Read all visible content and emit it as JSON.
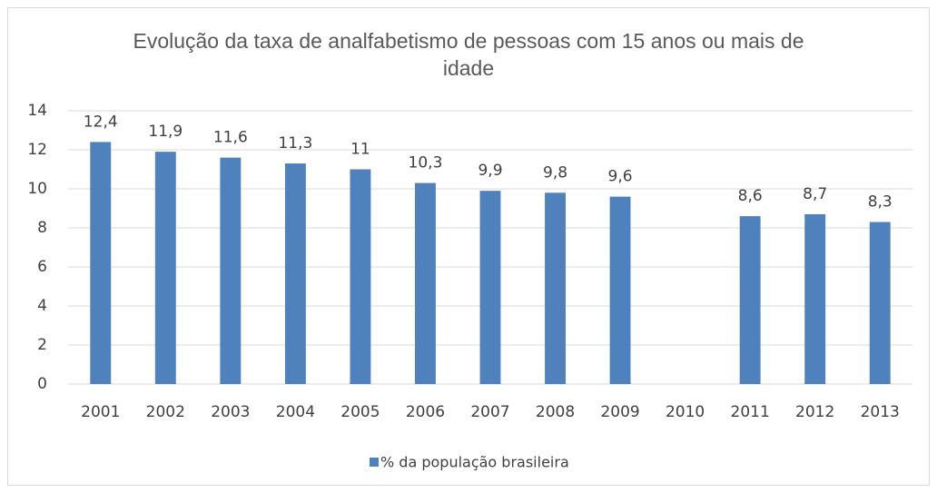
{
  "chart_data": {
    "type": "bar",
    "title": "Evolução da taxa de analfabetismo de pessoas com 15 anos ou mais de idade",
    "categories": [
      "2001",
      "2002",
      "2003",
      "2004",
      "2005",
      "2006",
      "2007",
      "2008",
      "2009",
      "2010",
      "2011",
      "2012",
      "2013"
    ],
    "series": [
      {
        "name": "% da população brasileira",
        "color": "#4f81bd",
        "values": [
          12.4,
          11.9,
          11.6,
          11.3,
          11,
          10.3,
          9.9,
          9.8,
          9.6,
          null,
          8.6,
          8.7,
          8.3
        ]
      }
    ],
    "value_labels": [
      "12,4",
      "11,9",
      "11,6",
      "11,3",
      "11",
      "10,3",
      "9,9",
      "9,8",
      "9,6",
      null,
      "8,6",
      "8,7",
      "8,3"
    ],
    "ylim": [
      0,
      14
    ],
    "yticks": [
      0,
      2,
      4,
      6,
      8,
      10,
      12,
      14
    ],
    "grid": true,
    "legend": "bottom"
  }
}
